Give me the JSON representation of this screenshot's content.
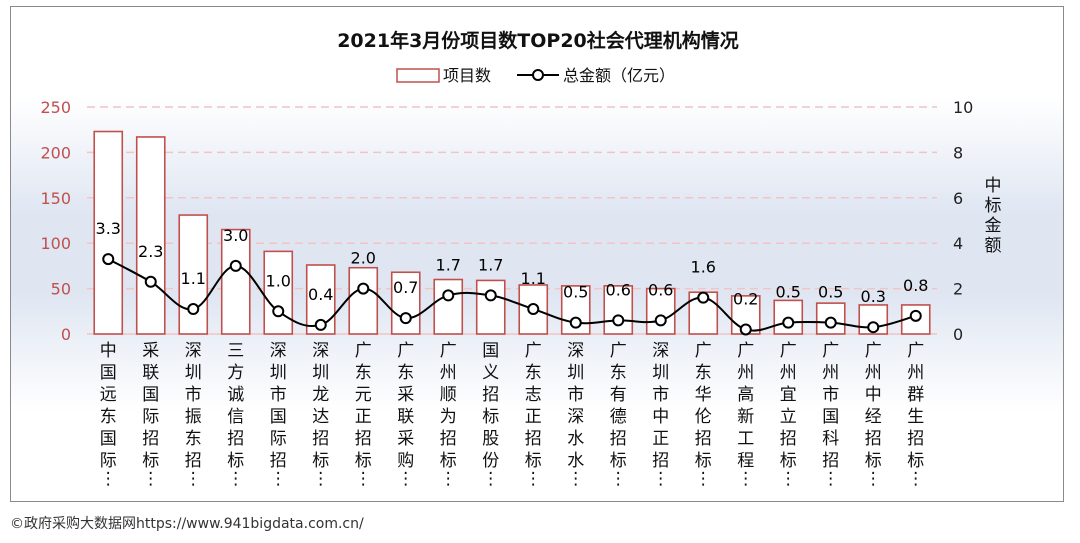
{
  "chart_data": {
    "type": "bar",
    "title": "2021年3月份项目数TOP20社会代理机构情况",
    "categories": [
      "中国远东国际…",
      "采联国际招标…",
      "深圳市振东招…",
      "三方诚信招标…",
      "深圳市国际招…",
      "深圳龙达招标…",
      "广东元正招标…",
      "广东采联采购…",
      "广州顺为招标…",
      "国义招标股份…",
      "广东志正招标…",
      "深圳市深水水…",
      "广东有德招标…",
      "深圳市中正招…",
      "广东华伦招标…",
      "广州高新工程…",
      "广州宜立招标…",
      "广州市国科招…",
      "广州中经招标…",
      "广州群生招标…"
    ],
    "series": [
      {
        "name": "项目数",
        "type": "bar",
        "axis": "left",
        "values": [
          223,
          217,
          131,
          115,
          91,
          76,
          73,
          68,
          60,
          59,
          54,
          53,
          53,
          50,
          46,
          42,
          37,
          34,
          32,
          32
        ]
      },
      {
        "name": "总金额（亿元）",
        "type": "line",
        "axis": "right",
        "values": [
          3.3,
          2.3,
          1.1,
          3.0,
          1.0,
          0.4,
          2.0,
          0.7,
          1.7,
          1.7,
          1.1,
          0.5,
          0.6,
          0.6,
          1.6,
          0.2,
          0.5,
          0.5,
          0.3,
          0.8
        ],
        "labels": [
          "3.3",
          "2.3",
          "1.1",
          "3.0",
          "1.0",
          "0.4",
          "2.0",
          "0.7",
          "1.7",
          "1.7",
          "1.1",
          "0.5",
          "0.6",
          "0.6",
          "1.6",
          "0.2",
          "0.5",
          "0.5",
          "0.3",
          "0.8"
        ]
      }
    ],
    "ylim_left": [
      0,
      250
    ],
    "yticks_left": [
      "0",
      "50",
      "100",
      "150",
      "200",
      "250"
    ],
    "ylim_right": [
      0,
      10
    ],
    "yticks_right": [
      "0",
      "2",
      "4",
      "6",
      "8",
      "10"
    ],
    "ylabel_right": "中标金额",
    "legend_position": "top-center",
    "grid": "dashed-horizontal",
    "colors": {
      "bar_border": "#c0504d",
      "bar_fill": "#ffffff",
      "line": "#000000",
      "grid": "#f2c4c4",
      "axis_text_left": "#c0504d"
    }
  },
  "footer": "©政府采购大数据网https://www.941bigdata.com.cn/"
}
